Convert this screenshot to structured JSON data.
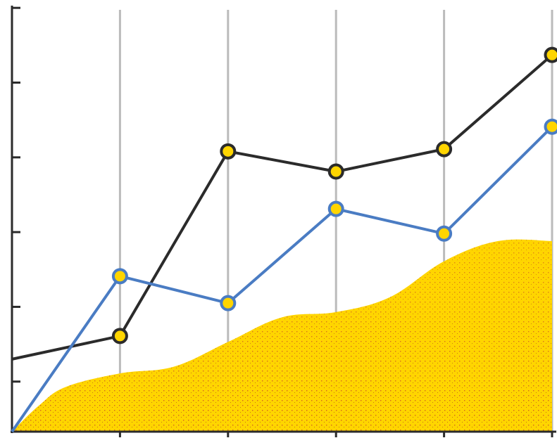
{
  "chart_data": {
    "type": "line",
    "title": "",
    "xlabel": "",
    "ylabel": "",
    "grid": "vertical",
    "legend": "none",
    "x": [
      0,
      1,
      2,
      3,
      4,
      5
    ],
    "xlim": [
      0,
      5
    ],
    "ylim": [
      0,
      5.7
    ],
    "yticks": [
      0,
      0.67,
      1.67,
      2.67,
      3.67,
      4.67,
      5.67
    ],
    "series": [
      {
        "values": [
          0.97,
          1.28,
          3.75,
          3.48,
          3.78,
          5.04
        ],
        "color": "#2b2b2b"
      },
      {
        "values": [
          0.0,
          2.08,
          1.72,
          2.98,
          2.65,
          4.08
        ],
        "color": "#4a7cc3"
      }
    ],
    "area": {
      "x": [
        0,
        0.25,
        0.5,
        1,
        1.5,
        2,
        2.5,
        3,
        3.5,
        4,
        4.5,
        5
      ],
      "values": [
        0.0,
        0.35,
        0.6,
        0.78,
        0.87,
        1.2,
        1.53,
        1.6,
        1.8,
        2.28,
        2.55,
        2.55
      ],
      "color": "#ffd500"
    },
    "colors": {
      "axis": "#2b2b2b",
      "grid": "#bbbbbb",
      "marker_fill": "#ffd500"
    }
  }
}
